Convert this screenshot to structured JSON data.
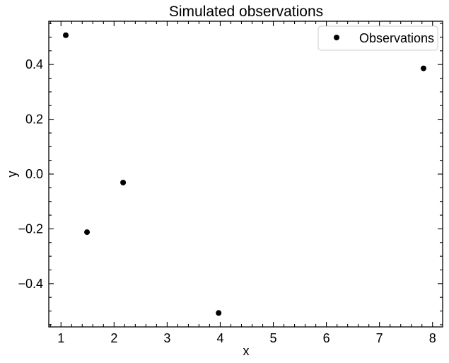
{
  "chart_data": {
    "type": "scatter",
    "title": "Simulated observations",
    "xlabel": "x",
    "ylabel": "y",
    "xlim": [
      0.77,
      8.19
    ],
    "ylim": [
      -0.558,
      0.558
    ],
    "xticks": [
      1,
      2,
      3,
      4,
      5,
      6,
      7,
      8
    ],
    "xtick_labels": [
      "1",
      "2",
      "3",
      "4",
      "5",
      "6",
      "7",
      "8"
    ],
    "yticks": [
      -0.4,
      -0.2,
      0.0,
      0.2,
      0.4
    ],
    "ytick_labels": [
      "−0.4",
      "−0.2",
      "0.0",
      "0.2",
      "0.4"
    ],
    "grid": false,
    "legend": {
      "position": "top-right"
    },
    "series": [
      {
        "name": "Observations",
        "color": "#000000",
        "marker": "circle",
        "points": [
          {
            "x": 1.09,
            "y": 0.507
          },
          {
            "x": 1.49,
            "y": -0.212
          },
          {
            "x": 2.17,
            "y": -0.031
          },
          {
            "x": 3.97,
            "y": -0.507
          },
          {
            "x": 7.83,
            "y": 0.386
          }
        ]
      }
    ]
  }
}
